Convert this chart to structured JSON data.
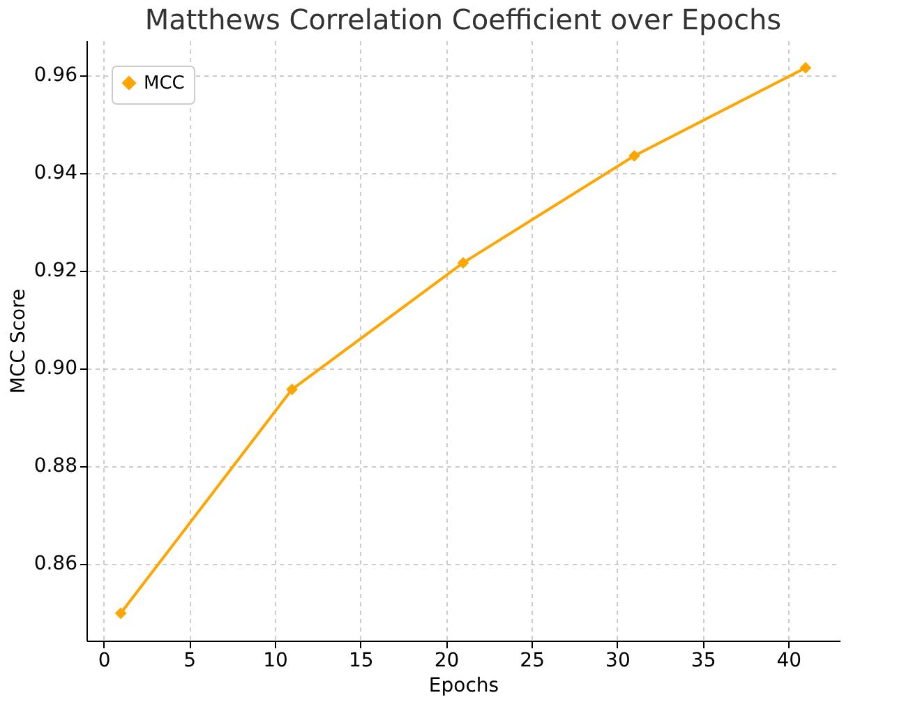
{
  "chart_data": {
    "type": "line",
    "title": "Matthews Correlation Coefficient over Epochs",
    "xlabel": "Epochs",
    "ylabel": "MCC Score",
    "x": [
      1,
      11,
      21,
      31,
      41
    ],
    "series": [
      {
        "name": "MCC",
        "color": "#ffa500",
        "values": [
          0.8498,
          0.8956,
          0.9215,
          0.9434,
          0.9614
        ]
      }
    ],
    "xlim": [
      -1,
      43
    ],
    "xticks": [
      0,
      5,
      10,
      15,
      20,
      25,
      30,
      35,
      40
    ],
    "ylim": [
      0.8442,
      0.967
    ],
    "yticks": [
      0.86,
      0.88,
      {
        "value": 0.9,
        "label": "0.90"
      },
      0.92,
      0.94,
      0.96
    ],
    "grid": true,
    "legend": "top left",
    "marker": "diamond",
    "line_style": "solid"
  }
}
